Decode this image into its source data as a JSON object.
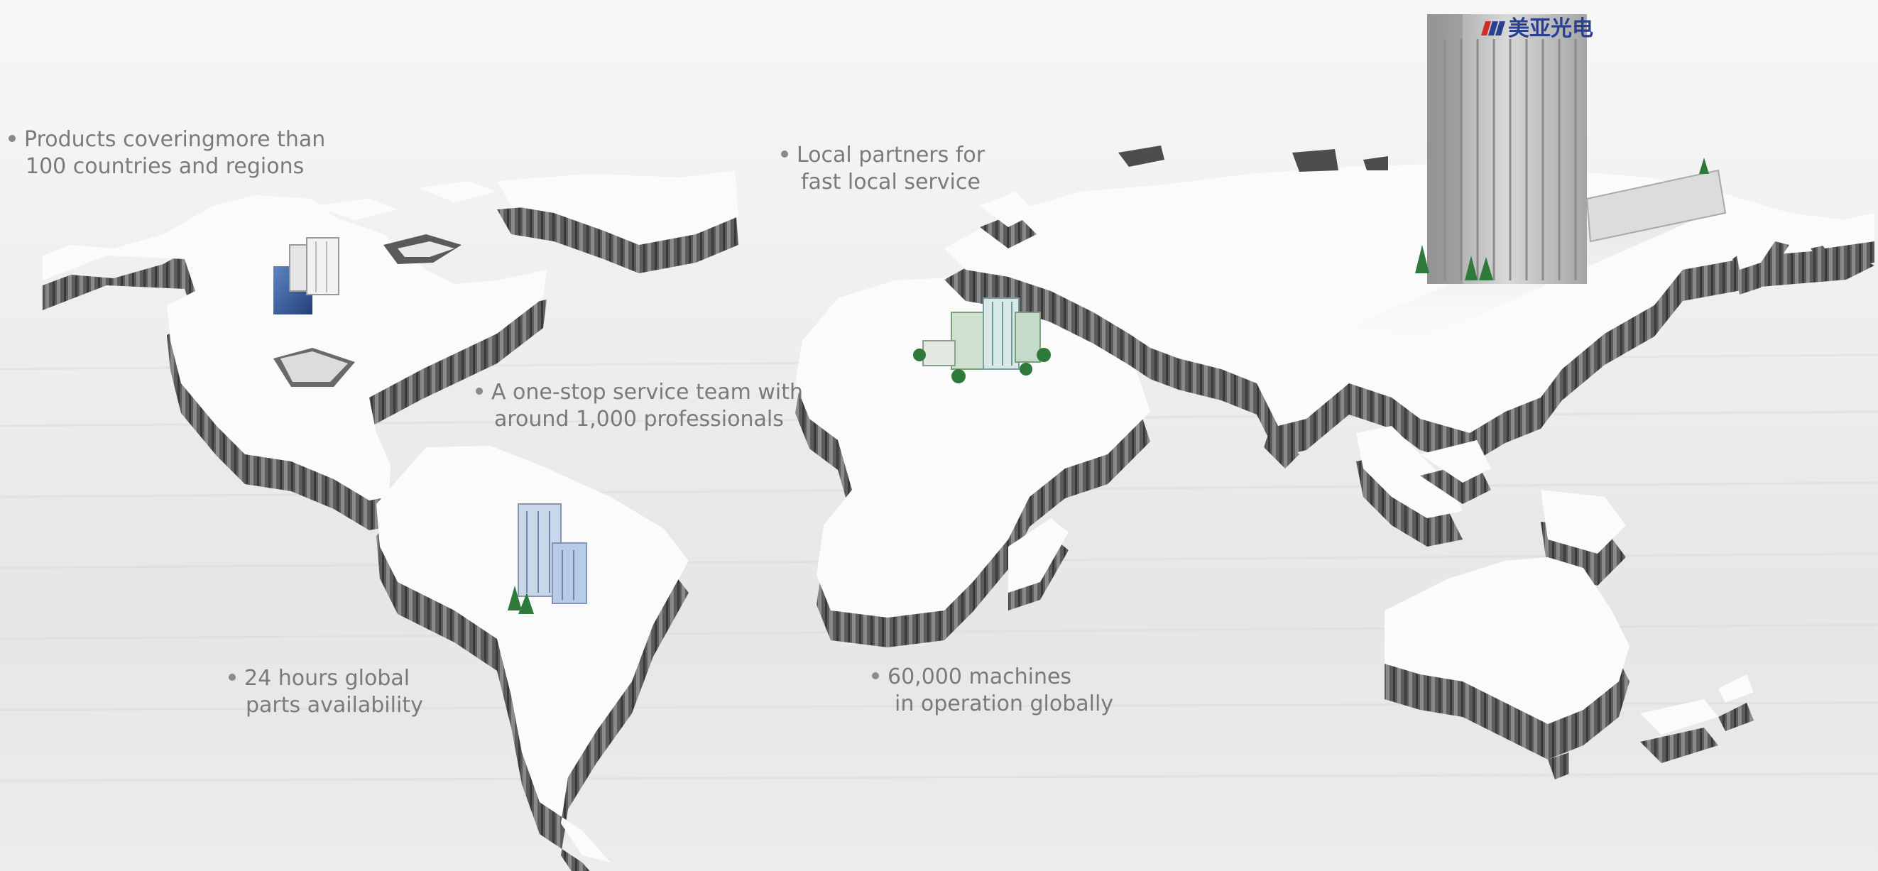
{
  "callouts": {
    "products": {
      "line1": "Products coveringmore than",
      "line2": "100 countries and regions"
    },
    "partners": {
      "line1": "Local partners for",
      "line2": "fast local service"
    },
    "service_team": {
      "line1": "A one-stop service team with",
      "line2": "around 1,000 professionals"
    },
    "parts": {
      "line1": "24 hours global",
      "line2": "parts availability"
    },
    "machines": {
      "line1": "60,000 machines",
      "line2": "in operation globally"
    }
  },
  "hq": {
    "logo_text": "美亚光电"
  },
  "colors": {
    "land_top": "#fbfbfb",
    "land_side": "#5a5a5a",
    "sea_light": "#f2f2f2",
    "text": "#7a7a7a",
    "logo_blue": "#2b3f8f",
    "logo_red": "#d42a2a"
  },
  "icons": {
    "buildings": [
      "office-buildings-icon",
      "tree-icon"
    ]
  }
}
